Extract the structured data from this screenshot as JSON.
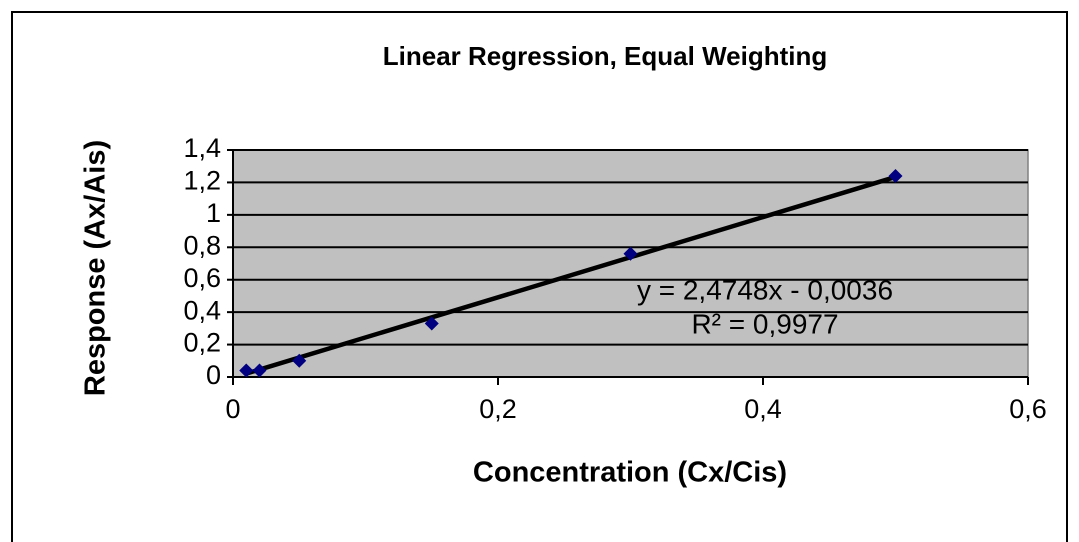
{
  "chart_data": {
    "type": "scatter",
    "title": "Linear Regression, Equal Weighting",
    "x_label": "Concentration (Cx/Cis)",
    "y_label": "Response (Ax/Ais)",
    "series": [
      {
        "x": [
          0.01,
          0.02,
          0.05,
          0.15,
          0.3,
          0.5
        ],
        "values": [
          0.04,
          0.04,
          0.1,
          0.33,
          0.76,
          1.24
        ],
        "color": "#000080"
      }
    ],
    "trendline": {
      "slope": 2.4748,
      "intercept": -0.0036,
      "x_range": [
        0.01,
        0.5
      ],
      "color": "#000000"
    },
    "annotations": [
      "y = 2,4748x - 0,0036",
      "R² = 0,9977"
    ],
    "xlim": [
      0,
      0.6
    ],
    "xticks": [
      0,
      {
        "value": 0.2,
        "label": "0,2"
      },
      {
        "value": 0.4,
        "label": "0,4"
      },
      {
        "value": 0.6,
        "label": "0,6"
      }
    ],
    "ylim": [
      0,
      1.4
    ],
    "yticks": [
      0,
      {
        "value": 0.2,
        "label": "0,2"
      },
      {
        "value": 0.4,
        "label": "0,4"
      },
      {
        "value": 0.6,
        "label": "0,6"
      },
      {
        "value": 0.8,
        "label": "0,8"
      },
      1,
      {
        "value": 1.2,
        "label": "1,2"
      },
      {
        "value": 1.4,
        "label": "1,4"
      }
    ],
    "grid": true,
    "plot_background": "#c0c0c0"
  }
}
